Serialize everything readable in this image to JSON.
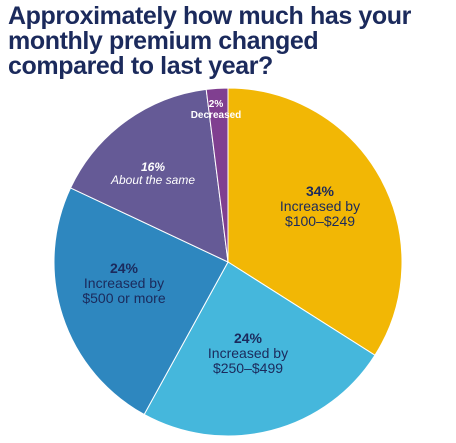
{
  "chart_data": {
    "type": "pie",
    "title_lines": [
      "Approximately how much has your",
      "monthly premium changed",
      "compared to last year?"
    ],
    "slices": [
      {
        "pct_label": "34%",
        "value": 34,
        "label_lines": [
          "Increased by",
          "$100–$249"
        ],
        "color": "#f2b705",
        "text_color": "#1b2a5c"
      },
      {
        "pct_label": "24%",
        "value": 24,
        "label_lines": [
          "Increased by",
          "$250–$499"
        ],
        "color": "#45b7dc",
        "text_color": "#1b2a5c"
      },
      {
        "pct_label": "24%",
        "value": 24,
        "label_lines": [
          "Increased by",
          "$500 or more"
        ],
        "color": "#2e87bf",
        "text_color": "#1b2a5c"
      },
      {
        "pct_label": "16%",
        "value": 16,
        "label_lines": [
          "About the same"
        ],
        "color": "#655a96",
        "text_color": "#ffffff",
        "italic": true
      },
      {
        "pct_label": "2%",
        "value": 2,
        "label_lines": [
          "Decreased"
        ],
        "color": "#803f90",
        "text_color": "#ffffff"
      }
    ]
  }
}
